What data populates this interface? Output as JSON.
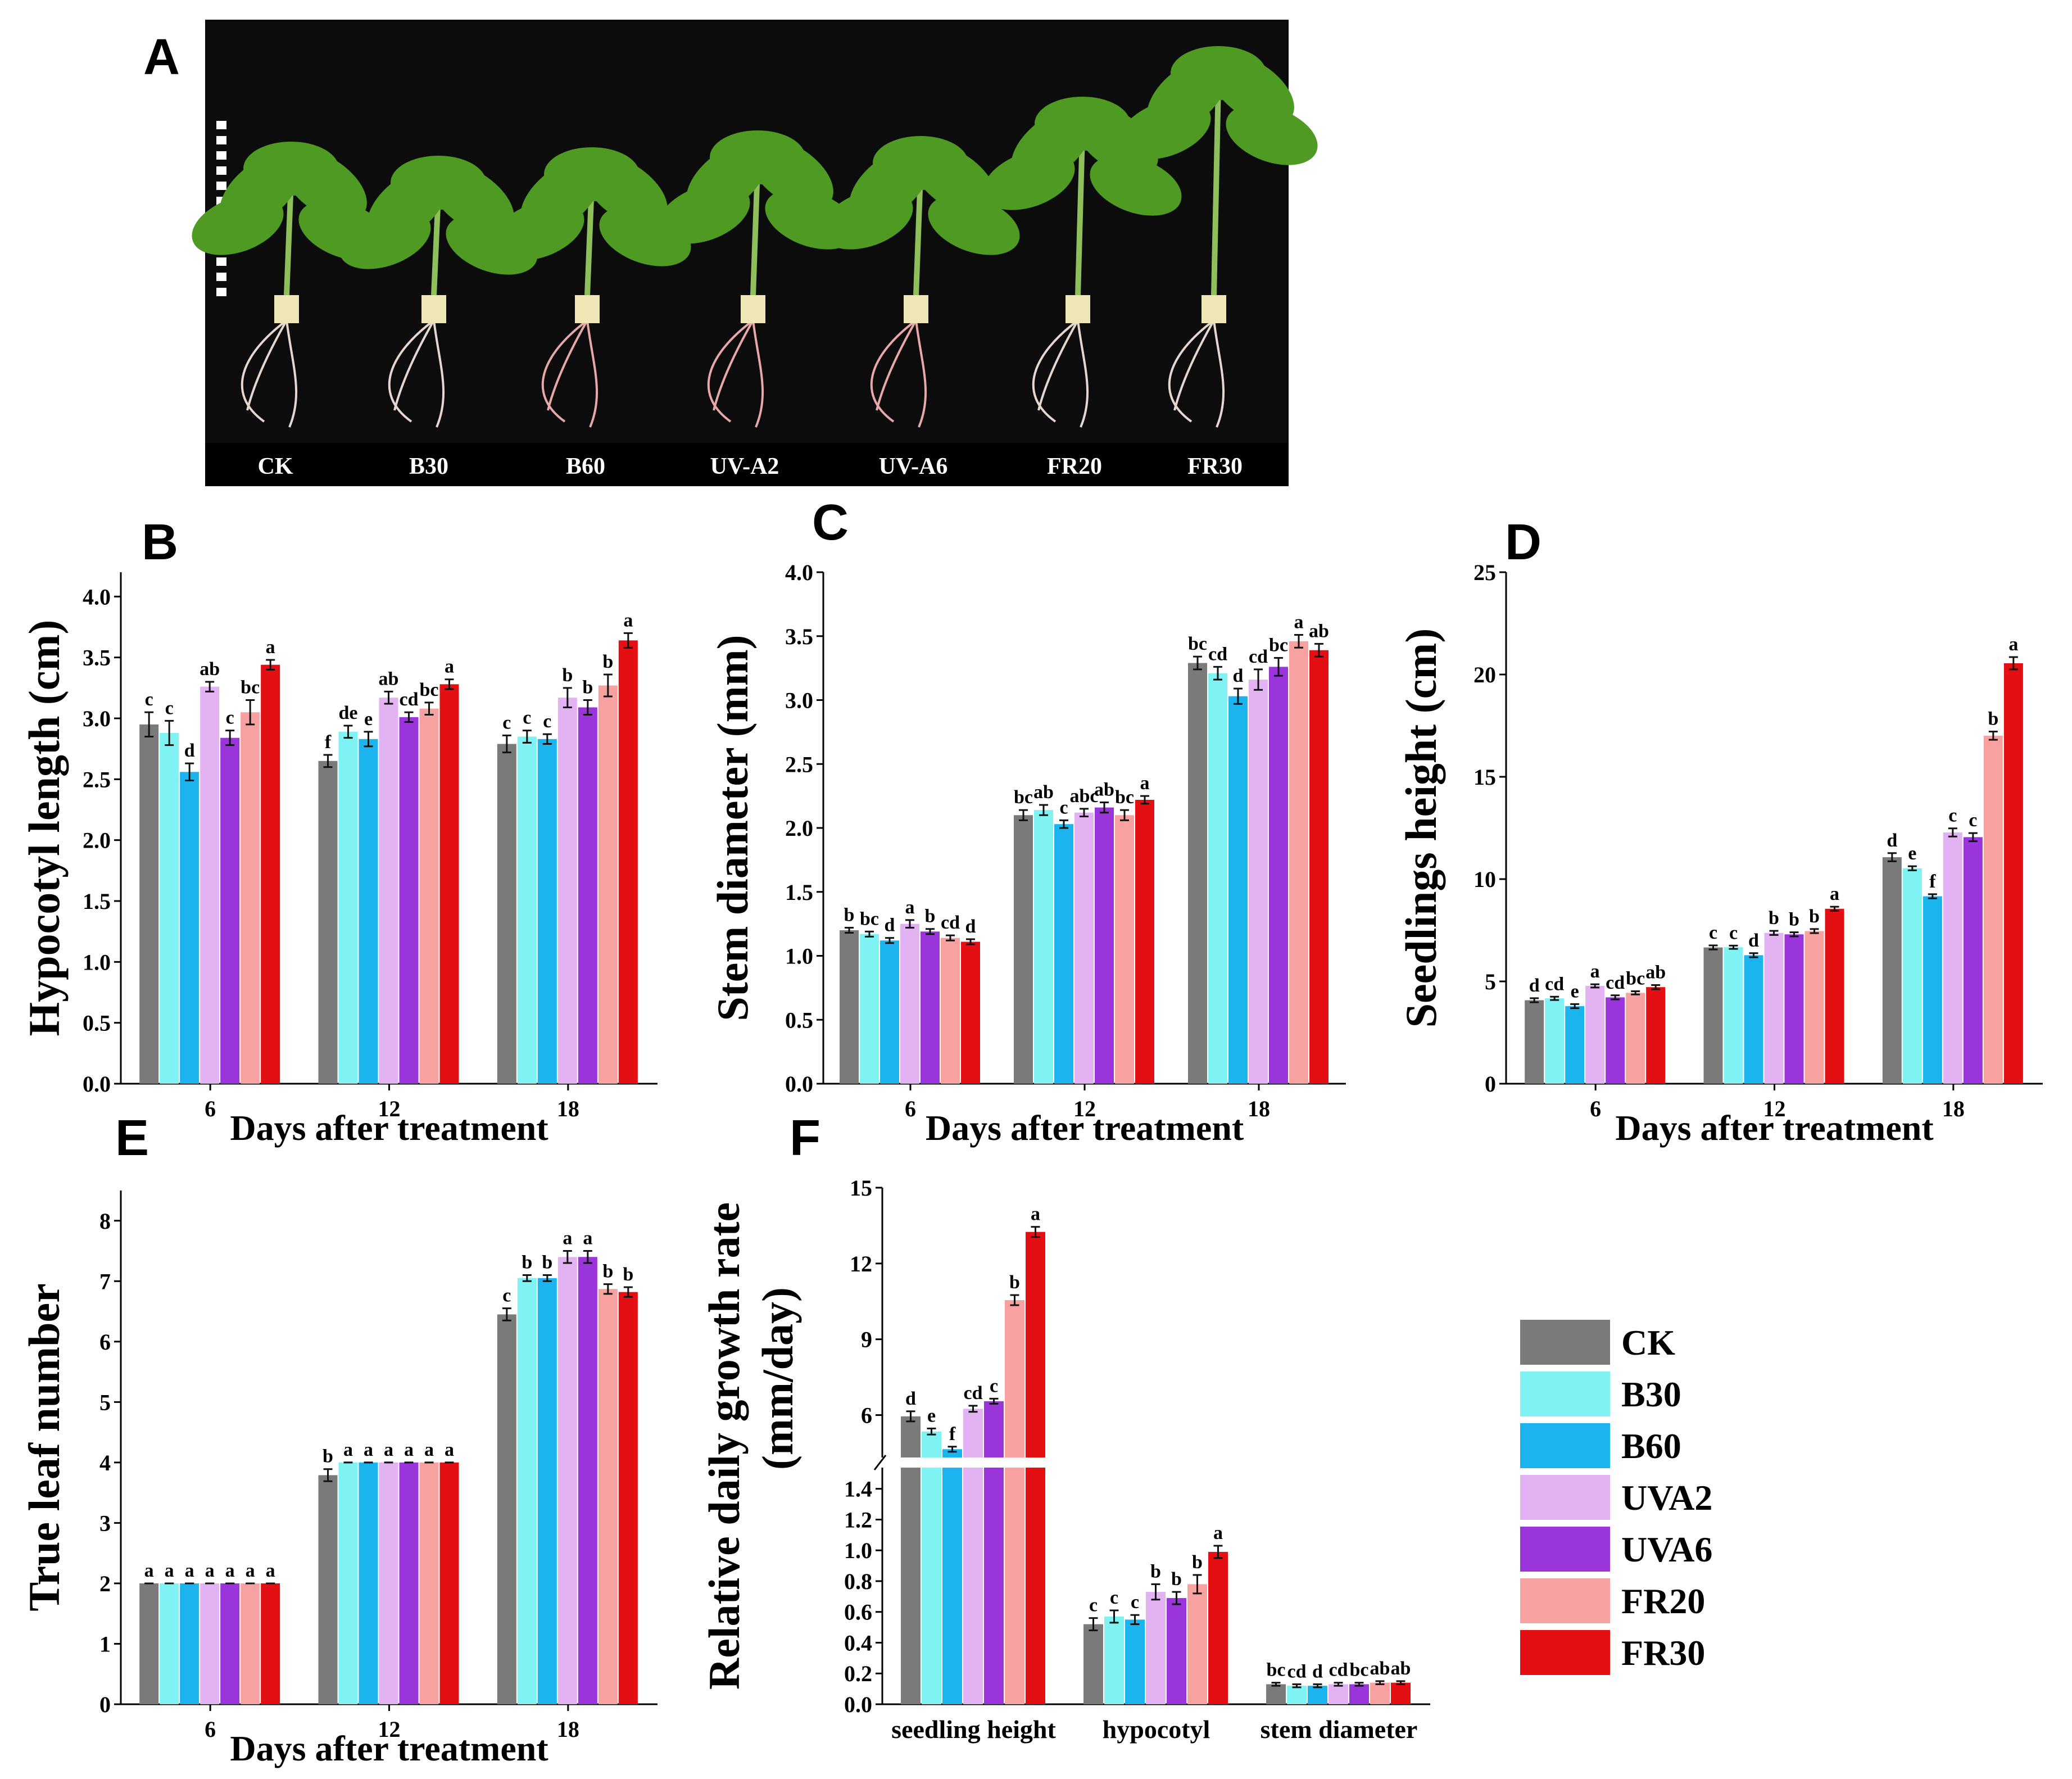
{
  "figure": {
    "panel_labels": [
      "A",
      "B",
      "C",
      "D",
      "E",
      "F"
    ],
    "photo_labels": [
      "CK",
      "B30",
      "B60",
      "UV-A2",
      "UV-A6",
      "FR20",
      "FR30"
    ]
  },
  "colors": {
    "CK": "#7a7a7a",
    "B30": "#7ff3f3",
    "B60": "#1bb4ee",
    "UVA2": "#e3b2f2",
    "UVA6": "#9a35db",
    "FR20": "#f7a1a1",
    "FR30": "#e40f12"
  },
  "legend": [
    "CK",
    "B30",
    "B60",
    "UVA2",
    "UVA6",
    "FR20",
    "FR30"
  ],
  "chart_data": [
    {
      "panel": "B",
      "type": "bar",
      "title": "",
      "xlabel": "Days after treatment",
      "ylabel": "Hypocotyl  length (cm)",
      "categories": [
        "6",
        "12",
        "18"
      ],
      "ylim": [
        0,
        4.2
      ],
      "yticks": [
        "0.0",
        "0.5",
        "1.0",
        "1.5",
        "2.0",
        "2.5",
        "3.0",
        "3.5",
        "4.0"
      ],
      "series": [
        {
          "name": "CK",
          "values": [
            2.95,
            2.65,
            2.79
          ],
          "errors": [
            0.1,
            0.05,
            0.07
          ],
          "labels": [
            "c",
            "f",
            "c"
          ]
        },
        {
          "name": "B30",
          "values": [
            2.88,
            2.89,
            2.85
          ],
          "errors": [
            0.1,
            0.05,
            0.05
          ],
          "labels": [
            "c",
            "de",
            "c"
          ]
        },
        {
          "name": "B60",
          "values": [
            2.56,
            2.83,
            2.83
          ],
          "errors": [
            0.07,
            0.06,
            0.04
          ],
          "labels": [
            "d",
            "e",
            "c"
          ]
        },
        {
          "name": "UVA2",
          "values": [
            3.26,
            3.17,
            3.17
          ],
          "errors": [
            0.04,
            0.05,
            0.08
          ],
          "labels": [
            "ab",
            "ab",
            "b"
          ]
        },
        {
          "name": "UVA6",
          "values": [
            2.84,
            3.01,
            3.09
          ],
          "errors": [
            0.06,
            0.04,
            0.06
          ],
          "labels": [
            "c",
            "cd",
            "b"
          ]
        },
        {
          "name": "FR20",
          "values": [
            3.05,
            3.08,
            3.27
          ],
          "errors": [
            0.1,
            0.05,
            0.09
          ],
          "labels": [
            "bc",
            "bc",
            "b"
          ]
        },
        {
          "name": "FR30",
          "values": [
            3.44,
            3.28,
            3.64
          ],
          "errors": [
            0.04,
            0.04,
            0.06
          ],
          "labels": [
            "a",
            "a",
            "a"
          ]
        }
      ]
    },
    {
      "panel": "C",
      "type": "bar",
      "title": "",
      "xlabel": "Days after treatment",
      "ylabel": "Stem diameter (mm)",
      "categories": [
        "6",
        "12",
        "18"
      ],
      "ylim": [
        0,
        4.0
      ],
      "yticks": [
        "0.0",
        "0.5",
        "1.0",
        "1.5",
        "2.0",
        "2.5",
        "3.0",
        "3.5",
        "4.0"
      ],
      "series": [
        {
          "name": "CK",
          "values": [
            1.2,
            2.1,
            3.29
          ],
          "errors": [
            0.02,
            0.04,
            0.05
          ],
          "labels": [
            "b",
            "bc",
            "bc"
          ]
        },
        {
          "name": "B30",
          "values": [
            1.17,
            2.14,
            3.21
          ],
          "errors": [
            0.02,
            0.04,
            0.05
          ],
          "labels": [
            "bc",
            "ab",
            "cd"
          ]
        },
        {
          "name": "B60",
          "values": [
            1.12,
            2.03,
            3.03
          ],
          "errors": [
            0.02,
            0.03,
            0.06
          ],
          "labels": [
            "d",
            "c",
            "d"
          ]
        },
        {
          "name": "UVA2",
          "values": [
            1.25,
            2.12,
            3.16
          ],
          "errors": [
            0.03,
            0.03,
            0.08
          ],
          "labels": [
            "a",
            "abc",
            "cd"
          ]
        },
        {
          "name": "UVA6",
          "values": [
            1.19,
            2.16,
            3.26
          ],
          "errors": [
            0.02,
            0.04,
            0.07
          ],
          "labels": [
            "b",
            "ab",
            "bc"
          ]
        },
        {
          "name": "FR20",
          "values": [
            1.14,
            2.1,
            3.46
          ],
          "errors": [
            0.02,
            0.04,
            0.05
          ],
          "labels": [
            "cd",
            "bc",
            "a"
          ]
        },
        {
          "name": "FR30",
          "values": [
            1.11,
            2.22,
            3.39
          ],
          "errors": [
            0.02,
            0.03,
            0.05
          ],
          "labels": [
            "d",
            "a",
            "ab"
          ]
        }
      ]
    },
    {
      "panel": "D",
      "type": "bar",
      "title": "",
      "xlabel": "Days after treatment",
      "ylabel": "Seedlings height (cm)",
      "categories": [
        "6",
        "12",
        "18"
      ],
      "ylim": [
        0,
        25
      ],
      "yticks": [
        "0",
        "5",
        "10",
        "15",
        "20",
        "25"
      ],
      "series": [
        {
          "name": "CK",
          "values": [
            4.08,
            6.66,
            11.07
          ],
          "errors": [
            0.1,
            0.1,
            0.2
          ],
          "labels": [
            "d",
            "c",
            "d"
          ]
        },
        {
          "name": "B30",
          "values": [
            4.17,
            6.67,
            10.53
          ],
          "errors": [
            0.08,
            0.08,
            0.1
          ],
          "labels": [
            "cd",
            "c",
            "e"
          ]
        },
        {
          "name": "B60",
          "values": [
            3.79,
            6.28,
            9.16
          ],
          "errors": [
            0.1,
            0.1,
            0.1
          ],
          "labels": [
            "e",
            "d",
            "f"
          ]
        },
        {
          "name": "UVA2",
          "values": [
            4.78,
            7.37,
            12.28
          ],
          "errors": [
            0.08,
            0.1,
            0.2
          ],
          "labels": [
            "a",
            "b",
            "c"
          ]
        },
        {
          "name": "UVA6",
          "values": [
            4.22,
            7.3,
            12.05
          ],
          "errors": [
            0.1,
            0.1,
            0.2
          ],
          "labels": [
            "cd",
            "b",
            "c"
          ]
        },
        {
          "name": "FR20",
          "values": [
            4.44,
            7.46,
            17.01
          ],
          "errors": [
            0.08,
            0.1,
            0.2
          ],
          "labels": [
            "bc",
            "b",
            "b"
          ]
        },
        {
          "name": "FR30",
          "values": [
            4.72,
            8.55,
            20.55
          ],
          "errors": [
            0.1,
            0.1,
            0.3
          ],
          "labels": [
            "ab",
            "a",
            "a"
          ]
        }
      ]
    },
    {
      "panel": "E",
      "type": "bar",
      "title": "",
      "xlabel": "Days after treatment",
      "ylabel": "True leaf number",
      "categories": [
        "6",
        "12",
        "18"
      ],
      "ylim": [
        0,
        8.5
      ],
      "yticks": [
        "0",
        "1",
        "2",
        "3",
        "4",
        "5",
        "6",
        "7",
        "8"
      ],
      "series": [
        {
          "name": "CK",
          "values": [
            2.0,
            3.79,
            6.45
          ],
          "errors": [
            0,
            0.1,
            0.1
          ],
          "labels": [
            "a",
            "b",
            "c"
          ]
        },
        {
          "name": "B30",
          "values": [
            2.0,
            4.0,
            7.05
          ],
          "errors": [
            0,
            0,
            0.05
          ],
          "labels": [
            "a",
            "a",
            "b"
          ]
        },
        {
          "name": "B60",
          "values": [
            2.0,
            4.0,
            7.05
          ],
          "errors": [
            0,
            0,
            0.05
          ],
          "labels": [
            "a",
            "a",
            "b"
          ]
        },
        {
          "name": "UVA2",
          "values": [
            2.0,
            4.0,
            7.4
          ],
          "errors": [
            0,
            0,
            0.1
          ],
          "labels": [
            "a",
            "a",
            "a"
          ]
        },
        {
          "name": "UVA6",
          "values": [
            2.0,
            4.0,
            7.4
          ],
          "errors": [
            0,
            0,
            0.1
          ],
          "labels": [
            "a",
            "a",
            "a"
          ]
        },
        {
          "name": "FR20",
          "values": [
            2.0,
            4.0,
            6.87
          ],
          "errors": [
            0,
            0,
            0.08
          ],
          "labels": [
            "a",
            "a",
            "b"
          ]
        },
        {
          "name": "FR30",
          "values": [
            2.0,
            4.0,
            6.82
          ],
          "errors": [
            0,
            0,
            0.08
          ],
          "labels": [
            "a",
            "a",
            "b"
          ]
        }
      ]
    },
    {
      "panel": "F",
      "type": "bar",
      "broken_axis": true,
      "title": "",
      "xlabel": "",
      "ylabel": "Relative daily growth rate (mm/day)",
      "ylabel_line1": "Relative daily growth rate",
      "ylabel_line2": "(mm/day)",
      "categories": [
        "seedling height",
        "hypocotyl",
        "stem diameter"
      ],
      "ylim_lower": [
        0,
        1.45
      ],
      "ylim_upper": [
        4.5,
        15
      ],
      "yticks_lower": [
        "0.0",
        "0.2",
        "0.4",
        "0.6",
        "0.8",
        "1.0",
        "1.2",
        "1.4"
      ],
      "yticks_upper": [
        "6",
        "9",
        "12",
        "15"
      ],
      "series": [
        {
          "name": "CK",
          "values": [
            5.95,
            0.52,
            0.13
          ],
          "errors": [
            0.2,
            0.04,
            0.01
          ],
          "labels": [
            "d",
            "c",
            "bc"
          ]
        },
        {
          "name": "B30",
          "values": [
            5.35,
            0.57,
            0.12
          ],
          "errors": [
            0.12,
            0.04,
            0.01
          ],
          "labels": [
            "e",
            "c",
            "cd"
          ]
        },
        {
          "name": "B60",
          "values": [
            4.65,
            0.55,
            0.12
          ],
          "errors": [
            0.1,
            0.03,
            0.01
          ],
          "labels": [
            "f",
            "c",
            "d"
          ]
        },
        {
          "name": "UVA2",
          "values": [
            6.25,
            0.73,
            0.13
          ],
          "errors": [
            0.12,
            0.05,
            0.01
          ],
          "labels": [
            "cd",
            "b",
            "cd"
          ]
        },
        {
          "name": "UVA6",
          "values": [
            6.55,
            0.69,
            0.13
          ],
          "errors": [
            0.1,
            0.04,
            0.01
          ],
          "labels": [
            "c",
            "b",
            "bc"
          ]
        },
        {
          "name": "FR20",
          "values": [
            10.55,
            0.78,
            0.14
          ],
          "errors": [
            0.2,
            0.06,
            0.01
          ],
          "labels": [
            "b",
            "b",
            "ab"
          ]
        },
        {
          "name": "FR30",
          "values": [
            13.25,
            0.99,
            0.14
          ],
          "errors": [
            0.2,
            0.04,
            0.01
          ],
          "labels": [
            "a",
            "a",
            "ab"
          ]
        }
      ]
    }
  ]
}
